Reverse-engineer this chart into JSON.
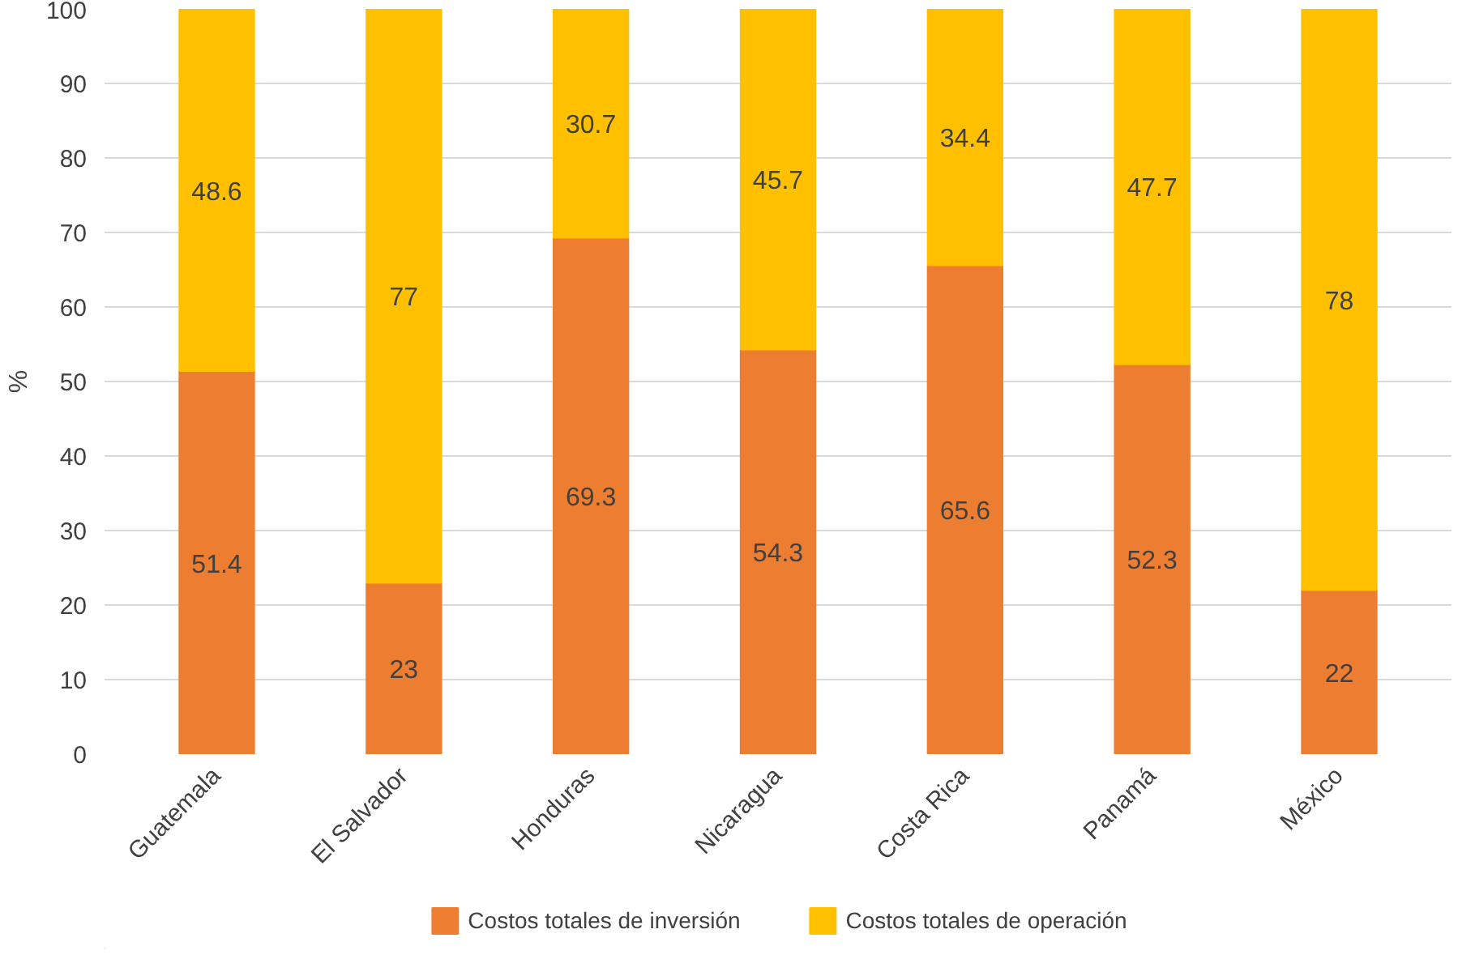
{
  "chart_data": {
    "type": "bar",
    "stacked": true,
    "ylabel": "%",
    "categories": [
      "Guatemala",
      "El Salvador",
      "Honduras",
      "Nicaragua",
      "Costa Rica",
      "Panamá",
      "México"
    ],
    "series": [
      {
        "name": "Costos totales de inversión",
        "color": "#ed7d31",
        "values": [
          51.4,
          23,
          69.3,
          54.3,
          65.6,
          52.3,
          22
        ]
      },
      {
        "name": "Costos totales de operación",
        "color": "#ffc000",
        "values": [
          48.6,
          77,
          30.7,
          45.7,
          34.4,
          47.7,
          78
        ]
      }
    ],
    "ylim": [
      0,
      100
    ],
    "yticks": [
      0,
      10,
      20,
      30,
      40,
      50,
      60,
      70,
      80,
      90,
      100
    ],
    "grid": "y",
    "legend": "bottom",
    "data_labels": true
  }
}
